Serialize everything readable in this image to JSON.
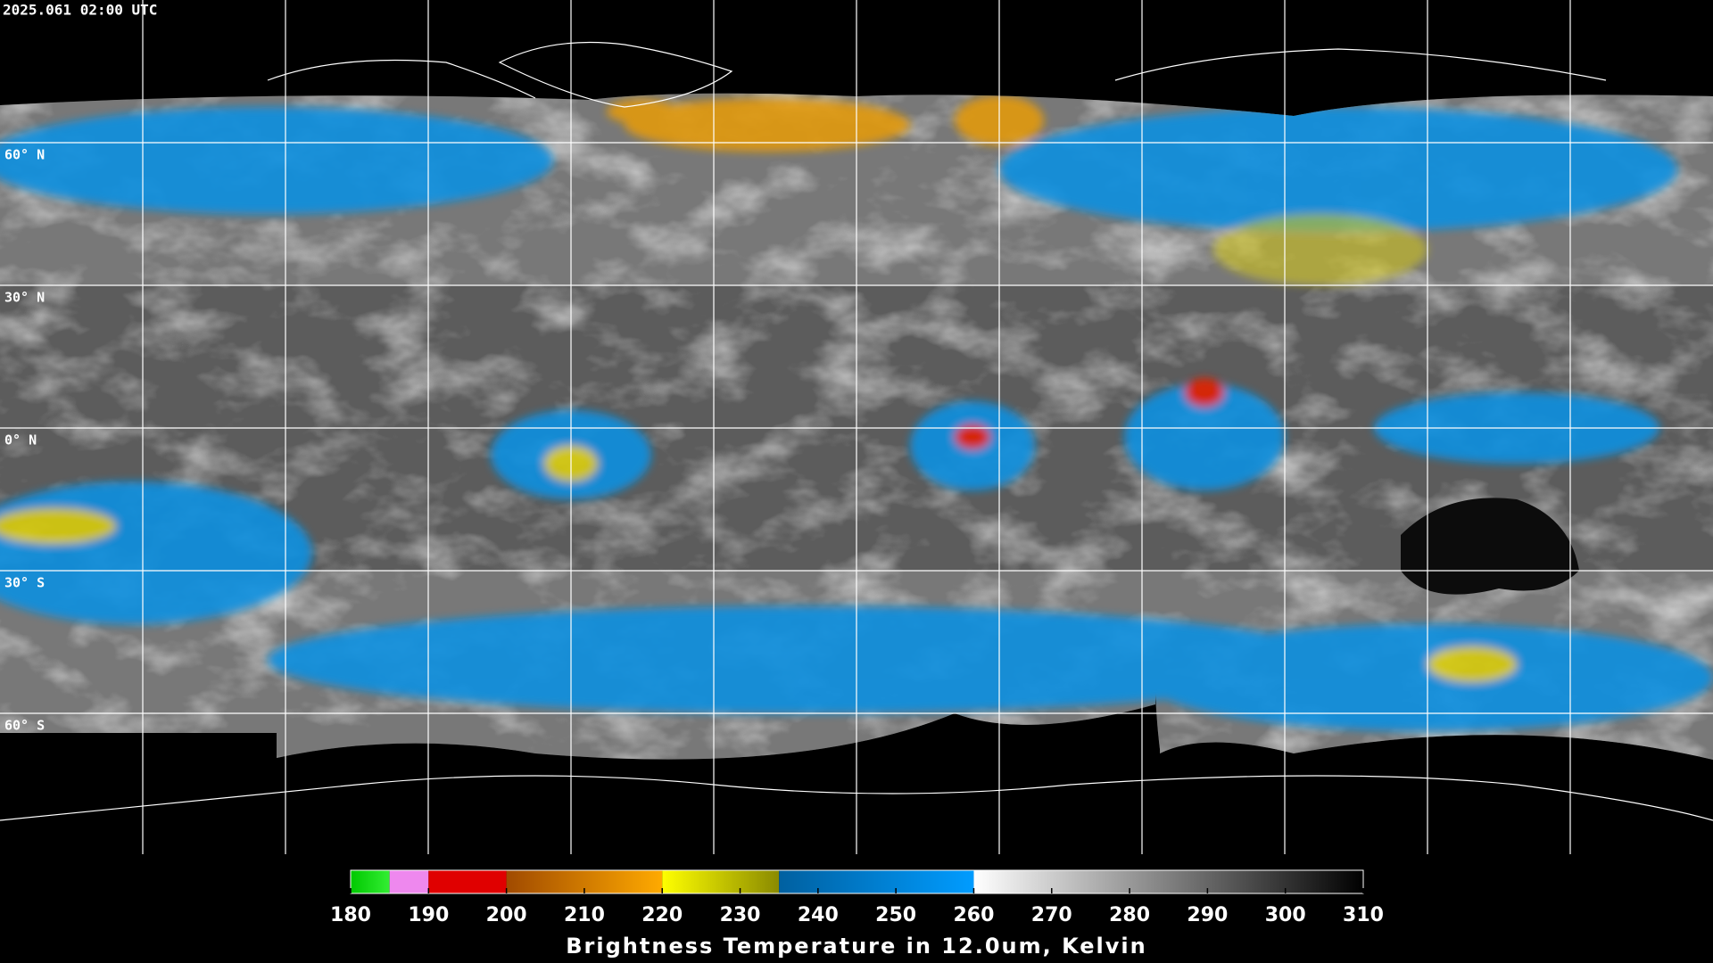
{
  "timestamp": "2025.061 02:00 UTC",
  "lat_lines": [
    {
      "value": 60,
      "label": "60° N"
    },
    {
      "value": 30,
      "label": "30° N"
    },
    {
      "value": 0,
      "label": "0° N"
    },
    {
      "value": -30,
      "label": "30° S"
    },
    {
      "value": -60,
      "label": "60° S"
    }
  ],
  "colorbar": {
    "title": "Brightness Temperature in 12.0um, Kelvin",
    "range": [
      180,
      310
    ],
    "ticks": [
      180,
      190,
      200,
      210,
      220,
      230,
      240,
      250,
      260,
      270,
      280,
      290,
      300,
      310
    ],
    "segments": [
      {
        "from": 180,
        "to": 185,
        "start": "#00c800",
        "end": "#33ee33"
      },
      {
        "from": 185,
        "to": 190,
        "start": "#ee88ee",
        "end": "#ee88ee"
      },
      {
        "from": 190,
        "to": 200,
        "start": "#e00000",
        "end": "#e00000"
      },
      {
        "from": 200,
        "to": 220,
        "start": "#a04a00",
        "end": "#ffaa00"
      },
      {
        "from": 220,
        "to": 235,
        "start": "#ffff00",
        "end": "#8a8a00"
      },
      {
        "from": 235,
        "to": 260,
        "start": "#0060a0",
        "end": "#009cff"
      },
      {
        "from": 260,
        "to": 310,
        "start": "#ffffff",
        "end": "#000000"
      }
    ]
  }
}
